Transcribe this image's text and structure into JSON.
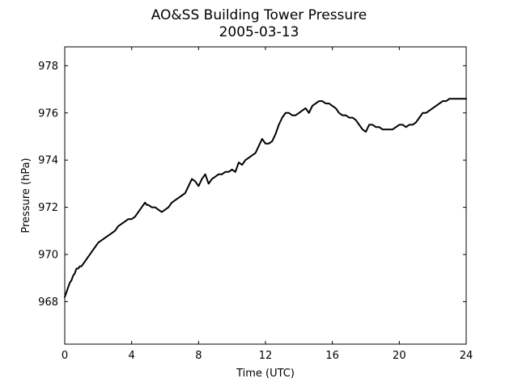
{
  "chart_data": {
    "type": "line",
    "title": "AO&SS Building Tower Pressure",
    "subtitle": "2005-03-13",
    "xlabel": "Time (UTC)",
    "ylabel": "Pressure (hPa)",
    "xlim": [
      0,
      24
    ],
    "ylim": [
      966.2,
      978.8
    ],
    "xticks": [
      0,
      4,
      8,
      12,
      16,
      20,
      24
    ],
    "yticks": [
      968,
      970,
      972,
      974,
      976,
      978
    ],
    "grid": false,
    "line_color": "#000000",
    "series": [
      {
        "x": [
          0.0,
          0.1,
          0.2,
          0.3,
          0.4,
          0.5,
          0.6,
          0.7,
          0.8,
          0.9,
          1.0,
          1.1,
          1.2,
          1.3,
          1.4,
          1.5,
          1.6,
          1.7,
          1.8,
          1.9,
          2.0,
          2.2,
          2.4,
          2.6,
          2.8,
          3.0,
          3.2,
          3.4,
          3.6,
          3.8,
          4.0,
          4.2,
          4.4,
          4.6,
          4.8,
          4.9,
          5.0,
          5.2,
          5.4,
          5.6,
          5.8,
          6.0,
          6.2,
          6.4,
          6.6,
          6.8,
          7.0,
          7.2,
          7.4,
          7.6,
          7.8,
          8.0,
          8.2,
          8.4,
          8.6,
          8.8,
          9.0,
          9.2,
          9.4,
          9.6,
          9.8,
          10.0,
          10.2,
          10.4,
          10.6,
          10.8,
          11.0,
          11.2,
          11.4,
          11.6,
          11.8,
          12.0,
          12.2,
          12.4,
          12.6,
          12.8,
          13.0,
          13.2,
          13.4,
          13.6,
          13.8,
          14.0,
          14.2,
          14.4,
          14.6,
          14.8,
          15.0,
          15.2,
          15.4,
          15.6,
          15.8,
          16.0,
          16.2,
          16.4,
          16.6,
          16.8,
          17.0,
          17.2,
          17.4,
          17.6,
          17.8,
          18.0,
          18.2,
          18.4,
          18.6,
          18.8,
          19.0,
          19.2,
          19.4,
          19.6,
          19.8,
          20.0,
          20.2,
          20.4,
          20.6,
          20.8,
          21.0,
          21.2,
          21.4,
          21.6,
          21.8,
          22.0,
          22.2,
          22.4,
          22.6,
          22.8,
          23.0,
          23.2,
          23.4,
          23.6,
          23.8,
          24.0
        ],
        "y": [
          968.2,
          968.4,
          968.6,
          968.8,
          968.9,
          969.1,
          969.2,
          969.4,
          969.4,
          969.5,
          969.5,
          969.6,
          969.7,
          969.8,
          969.9,
          970.0,
          970.1,
          970.2,
          970.3,
          970.4,
          970.5,
          970.6,
          970.7,
          970.8,
          970.9,
          971.0,
          971.2,
          971.3,
          971.4,
          971.5,
          971.5,
          971.6,
          971.8,
          972.0,
          972.2,
          972.1,
          972.1,
          972.0,
          972.0,
          971.9,
          971.8,
          971.9,
          972.0,
          972.2,
          972.3,
          972.4,
          972.5,
          972.6,
          972.9,
          973.2,
          973.1,
          972.9,
          973.2,
          973.4,
          973.0,
          973.2,
          973.3,
          973.4,
          973.4,
          973.5,
          973.5,
          973.6,
          973.5,
          973.9,
          973.8,
          974.0,
          974.1,
          974.2,
          974.3,
          974.6,
          974.9,
          974.7,
          974.7,
          974.8,
          975.1,
          975.5,
          975.8,
          976.0,
          976.0,
          975.9,
          975.9,
          976.0,
          976.1,
          976.2,
          976.0,
          976.3,
          976.4,
          976.5,
          976.5,
          976.4,
          976.4,
          976.3,
          976.2,
          976.0,
          975.9,
          975.9,
          975.8,
          975.8,
          975.7,
          975.5,
          975.3,
          975.2,
          975.5,
          975.5,
          975.4,
          975.4,
          975.3,
          975.3,
          975.3,
          975.3,
          975.4,
          975.5,
          975.5,
          975.4,
          975.5,
          975.5,
          975.6,
          975.8,
          976.0,
          976.0,
          976.1,
          976.2,
          976.3,
          976.4,
          976.5,
          976.5,
          976.6,
          976.6,
          976.6,
          976.6,
          976.6,
          976.6
        ]
      }
    ]
  }
}
